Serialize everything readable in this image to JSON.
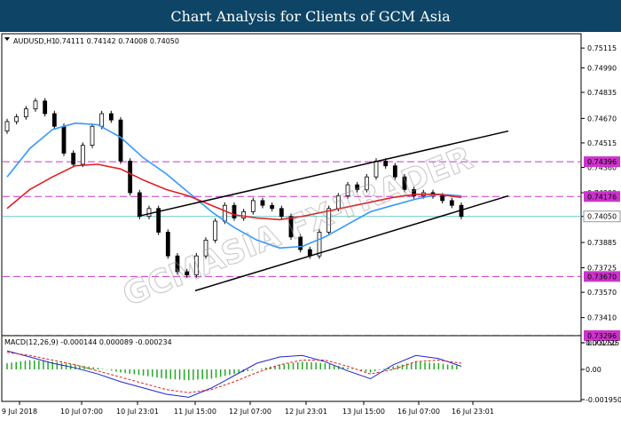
{
  "header": {
    "title": "Chart Analysis for Clients of GCM Asia"
  },
  "watermark": {
    "text": "GCMASIA FX-TRADER"
  },
  "chart_data": [
    {
      "type": "candlestick",
      "title": "",
      "symbol_label": "AUDUSD,H1",
      "ohlc_label": "0.74111 0.74142 0.74008 0.74050",
      "ylim": [
        0.732,
        0.752
      ],
      "y_ticks": [
        0.75115,
        0.7499,
        0.74835,
        0.7467,
        0.74515,
        0.7436,
        0.742,
        0.7405,
        0.73885,
        0.73725,
        0.7357,
        0.7341,
        0.7325
      ],
      "x_tick_labels": [
        "9 Jul 2018",
        "10 Jul 07:00",
        "10 Jul 23:01",
        "11 Jul 15:00",
        "12 Jul 07:00",
        "12 Jul 23:01",
        "13 Jul 15:00",
        "16 Jul 07:00",
        "16 Jul 23:01"
      ],
      "horizontal_levels": [
        {
          "value": 0.74396,
          "label": "0.74396",
          "style": "dashed",
          "color": "#cc33cc"
        },
        {
          "value": 0.74176,
          "label": "0.74176",
          "style": "dashed",
          "color": "#cc33cc"
        },
        {
          "value": 0.7367,
          "label": "0.73670",
          "style": "dashed",
          "color": "#cc33cc"
        },
        {
          "value": 0.73296,
          "label": "0.73296",
          "style": "dashed",
          "color": "#cc33cc"
        },
        {
          "value": 0.7405,
          "label": "0.74050",
          "style": "solid",
          "color": "#66cccc",
          "current_price": true
        }
      ],
      "series": [
        {
          "kind": "candles",
          "up_color": "#000000",
          "down_color": "#000000",
          "close_values": [
            0.7465,
            0.7468,
            0.7473,
            0.7478,
            0.747,
            0.7462,
            0.7445,
            0.7438,
            0.745,
            0.7462,
            0.747,
            0.7466,
            0.744,
            0.742,
            0.7405,
            0.741,
            0.7395,
            0.738,
            0.737,
            0.7368,
            0.738,
            0.739,
            0.7402,
            0.7412,
            0.7404,
            0.7408,
            0.7415,
            0.7412,
            0.741,
            0.7405,
            0.7392,
            0.7384,
            0.738,
            0.7395,
            0.741,
            0.7418,
            0.7425,
            0.7422,
            0.743,
            0.744,
            0.7437,
            0.743,
            0.7422,
            0.7418,
            0.742,
            0.7418,
            0.7415,
            0.7412,
            0.7405
          ]
        },
        {
          "kind": "ma",
          "name": "",
          "color": "#3399ff",
          "values": [
            0.743,
            0.7448,
            0.746,
            0.7464,
            0.7463,
            0.7455,
            0.7442,
            0.7432,
            0.742,
            0.7408,
            0.7398,
            0.739,
            0.7385,
            0.7386,
            0.7392,
            0.74,
            0.7408,
            0.7412,
            0.7416,
            0.7419,
            0.7418
          ]
        },
        {
          "kind": "ma",
          "name": "",
          "color": "#e02020",
          "values": [
            0.741,
            0.7422,
            0.743,
            0.7437,
            0.7438,
            0.7435,
            0.7428,
            0.7422,
            0.7418,
            0.7412,
            0.7406,
            0.7404,
            0.7403,
            0.7405,
            0.7408,
            0.7411,
            0.7414,
            0.7417,
            0.7419,
            0.7419,
            0.7417
          ]
        }
      ],
      "trend_channel": {
        "upper": {
          "from": [
            "10 Jul 23:01",
            0.7405
          ],
          "to": [
            "16 Jul 23:01",
            0.7459
          ]
        },
        "lower": {
          "from": [
            "11 Jul 15:00",
            0.7358
          ],
          "to": [
            "16 Jul 23:01",
            0.7418
          ]
        }
      }
    },
    {
      "type": "macd",
      "title": "MACD(12,26,9) -0.000144 0.000089 -0.000234",
      "ylim": [
        -0.00195,
        0.00172
      ],
      "y_ticks": [
        0.001725,
        0.0,
        -0.00195
      ],
      "y_tick_labels": [
        "0.001725",
        "0.00",
        "-0.001950"
      ],
      "series": [
        {
          "kind": "histogram",
          "color": "#22aa22",
          "values": [
            0.0004,
            0.0006,
            0.0005,
            0.0003,
            0.0001,
            -0.0002,
            -0.0004,
            -0.0006,
            -0.0007,
            -0.0006,
            -0.0003,
            0.0,
            0.0003,
            0.0005,
            0.0004,
            0.0001,
            -0.0002,
            0.0002,
            0.0005,
            0.0004,
            0.0002
          ]
        },
        {
          "kind": "line",
          "name": "",
          "color": "#2222cc",
          "values": [
            0.0012,
            0.0008,
            0.0004,
            0.0001,
            -0.0003,
            -0.0008,
            -0.0012,
            -0.0016,
            -0.0018,
            -0.0012,
            -0.0004,
            0.0004,
            0.0008,
            0.0009,
            0.0005,
            -0.0001,
            -0.0006,
            0.0003,
            0.0009,
            0.0007,
            0.0002
          ]
        },
        {
          "kind": "line",
          "name": "",
          "color": "#dd2222",
          "dashed": true,
          "values": [
            0.0011,
            0.0009,
            0.0006,
            0.0003,
            -0.0001,
            -0.0005,
            -0.0009,
            -0.0013,
            -0.0015,
            -0.0013,
            -0.0008,
            -0.0002,
            0.0003,
            0.0006,
            0.0006,
            0.0002,
            -0.0003,
            0.0,
            0.0005,
            0.0006,
            0.0004
          ]
        }
      ]
    }
  ]
}
